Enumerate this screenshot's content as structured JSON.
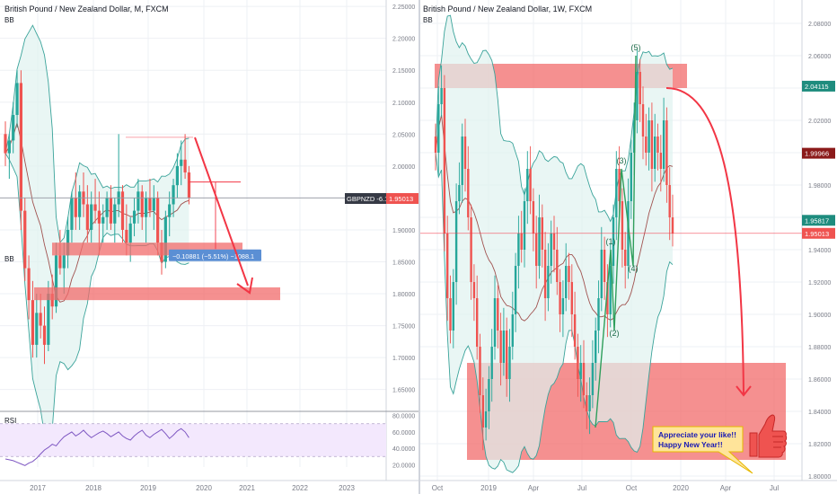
{
  "colors": {
    "up": "#26a69a",
    "down": "#ef5350",
    "zone": "#f26b6b",
    "arrow": "#f23645",
    "band_fill": "#dff2ef",
    "band_line": "#3aa39a",
    "basis_line": "#a0524f",
    "rsi_line": "#7e57c2",
    "rsi_fill": "#f3e8fd",
    "grid": "#eef0f4",
    "axis_text": "#787b86",
    "current_price_bg": "#ef5350",
    "green_badge": "#1e8c7e",
    "dark_badge": "#8b1a1a",
    "label_blue": "#5b8fd4",
    "callout_bg": "#ffe49a",
    "callout_text": "#1a1ab4",
    "thumb": "#ef5350"
  },
  "left_panel": {
    "title": "British Pound / New Zealand Dollar, M, FXCM",
    "indicator": "BB",
    "price_axis": [
      "2.25000",
      "2.20000",
      "2.15000",
      "2.10000",
      "2.05000",
      "2.00000",
      "1.95000",
      "1.90000",
      "1.85000",
      "1.80000",
      "1.75000",
      "1.70000",
      "1.65000"
    ],
    "symbol_badge": "GBPNZD -6.11%",
    "price_badge": "1.95013",
    "measure_label": "−0.10881 (−5.51%) −1088.1",
    "rsi_label": "RSI",
    "rsi_axis": [
      "80.0000",
      "60.0000",
      "40.0000",
      "20.0000"
    ],
    "time_axis": [
      "2017",
      "2018",
      "2019",
      "2020",
      "2021",
      "2022",
      "2023"
    ]
  },
  "right_panel": {
    "title": "British Pound / New Zealand Dollar, 1W, FXCM",
    "indicator": "BB",
    "price_axis": [
      "2.08000",
      "2.06000",
      "2.04000",
      "2.02000",
      "2.00000",
      "1.98000",
      "1.96000",
      "1.94000",
      "1.92000",
      "1.90000",
      "1.88000",
      "1.86000",
      "1.84000",
      "1.82000",
      "1.80000"
    ],
    "badges": [
      {
        "text": "2.04115",
        "kind": "green"
      },
      {
        "text": "1.99966",
        "kind": "dark"
      },
      {
        "text": "1.95817",
        "kind": "green"
      },
      {
        "text": "1.95013",
        "kind": "red"
      }
    ],
    "waves": [
      "(1)",
      "(2)",
      "(3)",
      "(4)",
      "(5)"
    ],
    "callout": [
      "Appreciate your like!!",
      "Happy New Year!!"
    ],
    "time_axis": [
      "Oct",
      "2019",
      "Apr",
      "Jul",
      "Oct",
      "2020",
      "Apr",
      "Jul"
    ]
  },
  "chart_data": [
    {
      "type": "candlestick",
      "title": "British Pound / New Zealand Dollar, M, FXCM",
      "timeframe": "M",
      "ylim": [
        1.62,
        2.26
      ],
      "x_ticks": [
        "2017",
        "2018",
        "2019",
        "2020",
        "2021",
        "2022",
        "2023"
      ],
      "y_ticks": [
        2.25,
        2.2,
        2.15,
        2.1,
        2.05,
        2.0,
        1.95,
        1.9,
        1.85,
        1.8,
        1.75,
        1.7,
        1.65
      ],
      "indicators": [
        "BB",
        "RSI"
      ],
      "last_price": 1.95013,
      "change_pct": -6.11,
      "candles": [
        [
          2.05,
          2.07,
          2.0,
          2.02
        ],
        [
          2.02,
          2.05,
          1.98,
          2.04
        ],
        [
          2.04,
          2.1,
          2.02,
          2.08
        ],
        [
          2.08,
          2.15,
          2.06,
          2.13
        ],
        [
          2.13,
          2.15,
          1.9,
          1.93
        ],
        [
          1.93,
          1.95,
          1.82,
          1.84
        ],
        [
          1.84,
          1.86,
          1.76,
          1.79
        ],
        [
          1.79,
          1.82,
          1.7,
          1.72
        ],
        [
          1.72,
          1.8,
          1.7,
          1.77
        ],
        [
          1.77,
          1.8,
          1.73,
          1.75
        ],
        [
          1.75,
          1.78,
          1.69,
          1.72
        ],
        [
          1.72,
          1.82,
          1.71,
          1.8
        ],
        [
          1.8,
          1.83,
          1.76,
          1.78
        ],
        [
          1.78,
          1.88,
          1.77,
          1.86
        ],
        [
          1.86,
          1.9,
          1.83,
          1.84
        ],
        [
          1.84,
          1.88,
          1.8,
          1.86
        ],
        [
          1.86,
          1.92,
          1.84,
          1.9
        ],
        [
          1.9,
          1.96,
          1.88,
          1.95
        ],
        [
          1.95,
          1.99,
          1.9,
          1.92
        ],
        [
          1.92,
          1.97,
          1.9,
          1.96
        ],
        [
          1.96,
          1.99,
          1.92,
          1.94
        ],
        [
          1.94,
          1.97,
          1.88,
          1.9
        ],
        [
          1.9,
          1.96,
          1.88,
          1.94
        ],
        [
          1.94,
          1.98,
          1.91,
          1.93
        ],
        [
          1.93,
          1.96,
          1.86,
          1.91
        ],
        [
          1.91,
          1.94,
          1.88,
          1.92
        ],
        [
          1.92,
          1.96,
          1.9,
          1.95
        ],
        [
          1.95,
          1.97,
          1.9,
          1.91
        ],
        [
          1.91,
          1.95,
          1.88,
          1.94
        ],
        [
          1.94,
          2.05,
          1.92,
          1.96
        ],
        [
          1.96,
          1.97,
          1.88,
          1.9
        ],
        [
          1.9,
          1.94,
          1.86,
          1.88
        ],
        [
          1.88,
          1.92,
          1.85,
          1.91
        ],
        [
          1.91,
          1.95,
          1.89,
          1.93
        ],
        [
          1.93,
          1.98,
          1.91,
          1.96
        ],
        [
          1.96,
          1.97,
          1.9,
          1.92
        ],
        [
          1.92,
          1.96,
          1.88,
          1.95
        ],
        [
          1.95,
          1.98,
          1.92,
          1.93
        ],
        [
          1.93,
          1.97,
          1.9,
          1.95
        ],
        [
          1.95,
          1.96,
          1.86,
          1.88
        ],
        [
          1.88,
          1.9,
          1.83,
          1.85
        ],
        [
          1.85,
          1.93,
          1.84,
          1.92
        ],
        [
          1.92,
          1.96,
          1.89,
          1.94
        ],
        [
          1.94,
          1.98,
          1.92,
          1.97
        ],
        [
          1.97,
          2.02,
          1.95,
          2.0
        ],
        [
          2.0,
          2.04,
          1.97,
          2.01
        ],
        [
          2.01,
          2.05,
          1.98,
          1.99
        ],
        [
          1.99,
          2.0,
          1.94,
          1.95
        ]
      ],
      "zones": [
        [
          1.86,
          1.88
        ],
        [
          1.79,
          1.81
        ]
      ],
      "measure": {
        "change": -0.10881,
        "pct": -5.51,
        "pips": -1088.1
      },
      "rsi": {
        "ylim": [
          15,
          85
        ],
        "ticks": [
          80,
          60,
          40,
          20
        ],
        "values": [
          27,
          26,
          25,
          23,
          21,
          19,
          22,
          24,
          28,
          33,
          38,
          41,
          45,
          43,
          49,
          54,
          57,
          60,
          55,
          58,
          62,
          57,
          53,
          56,
          59,
          61,
          58,
          54,
          57,
          60,
          55,
          52,
          50,
          55,
          59,
          62,
          56,
          53,
          57,
          60,
          63,
          58,
          52,
          56,
          61,
          64,
          60,
          53
        ]
      }
    },
    {
      "type": "candlestick",
      "title": "British Pound / New Zealand Dollar, 1W, FXCM",
      "timeframe": "1W",
      "ylim": [
        1.79,
        2.09
      ],
      "x_ticks": [
        "Oct",
        "2019",
        "Apr",
        "Jul",
        "Oct",
        "2020",
        "Apr",
        "Jul"
      ],
      "y_ticks": [
        2.08,
        2.06,
        2.04,
        2.02,
        2.0,
        1.98,
        1.96,
        1.94,
        1.92,
        1.9,
        1.88,
        1.86,
        1.84,
        1.82,
        1.8
      ],
      "indicators": [
        "BB"
      ],
      "last_price": 1.95013,
      "price_levels": [
        2.04115,
        1.99966,
        1.95817,
        1.95013
      ],
      "waves": [
        {
          "label": "(1)",
          "price": 1.94
        },
        {
          "label": "(2)",
          "price": 1.89
        },
        {
          "label": "(3)",
          "price": 1.99
        },
        {
          "label": "(4)",
          "price": 1.93
        },
        {
          "label": "(5)",
          "price": 2.06
        }
      ],
      "zones": [
        [
          2.04,
          2.055
        ],
        [
          1.81,
          1.87
        ]
      ],
      "closes": [
        2.0,
        2.03,
        2.04,
        1.95,
        1.91,
        1.89,
        1.92,
        1.97,
        1.98,
        2.01,
        1.99,
        1.96,
        1.92,
        1.91,
        1.88,
        1.85,
        1.83,
        1.84,
        1.86,
        1.88,
        1.91,
        1.89,
        1.87,
        1.89,
        1.86,
        1.88,
        1.9,
        1.93,
        1.95,
        1.94,
        1.97,
        1.99,
        1.97,
        1.95,
        1.93,
        1.96,
        1.94,
        1.91,
        1.93,
        1.95,
        1.94,
        1.92,
        1.9,
        1.91,
        1.93,
        1.92,
        1.9,
        1.88,
        1.86,
        1.87,
        1.85,
        1.84,
        1.85,
        1.87,
        1.89,
        1.91,
        1.94,
        1.92,
        1.9,
        1.93,
        1.96,
        1.99,
        1.97,
        1.94,
        1.93,
        1.97,
        2.0,
        2.02,
        2.05,
        2.03,
        2.01,
        2.0,
        2.02,
        1.99,
        2.01,
        2.0,
        1.99,
        2.02,
        1.98,
        1.96,
        1.95
      ]
    }
  ]
}
